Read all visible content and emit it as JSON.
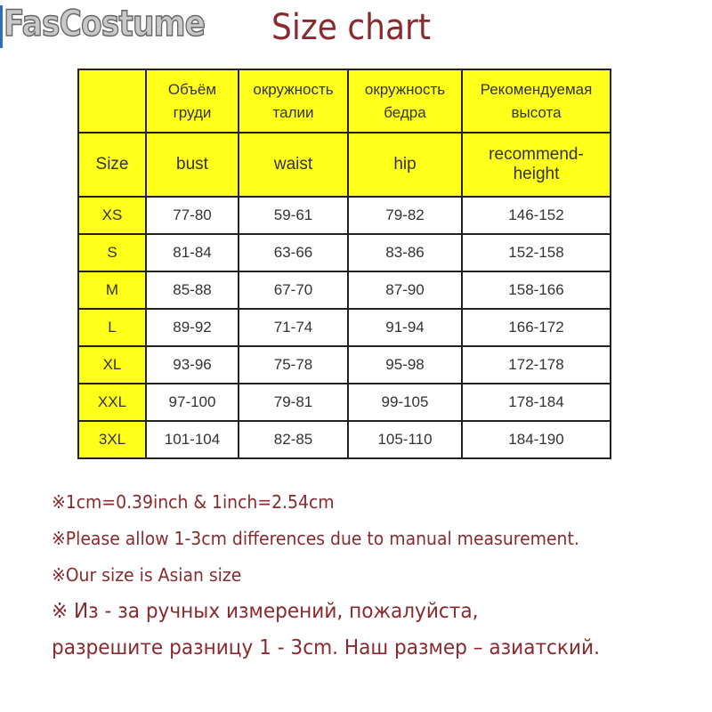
{
  "brand": "FasCostume",
  "title": "Size chart",
  "colors": {
    "header": "#ffff1a",
    "title": "#8a2a2e"
  },
  "table": {
    "ru_headers": [
      "",
      "Объём груди",
      "окружность талии",
      "окружность бедра",
      "Рекомендуемая высота"
    ],
    "en_headers": [
      "Size",
      "bust",
      "waist",
      "hip",
      "recommend-height"
    ],
    "rows": [
      [
        "XS",
        "77-80",
        "59-61",
        "79-82",
        "146-152"
      ],
      [
        "S",
        "81-84",
        "63-66",
        "83-86",
        "152-158"
      ],
      [
        "M",
        "85-88",
        "67-70",
        "87-90",
        "158-166"
      ],
      [
        "L",
        "89-92",
        "71-74",
        "91-94",
        "166-172"
      ],
      [
        "XL",
        "93-96",
        "75-78",
        "95-98",
        "172-178"
      ],
      [
        "XXL",
        "97-100",
        "79-81",
        "99-105",
        "178-184"
      ],
      [
        "3XL",
        "101-104",
        "82-85",
        "105-110",
        "184-190"
      ]
    ]
  },
  "notes": [
    "※1cm=0.39inch & 1inch=2.54cm",
    "※Please allow 1-3cm differences due to manual measurement.",
    "※Our size is Asian size",
    "※ Из - за ручных измерений, пожалуйста,",
    "разрешите разницу 1 - 3cm. Наш размер – азиатский."
  ]
}
